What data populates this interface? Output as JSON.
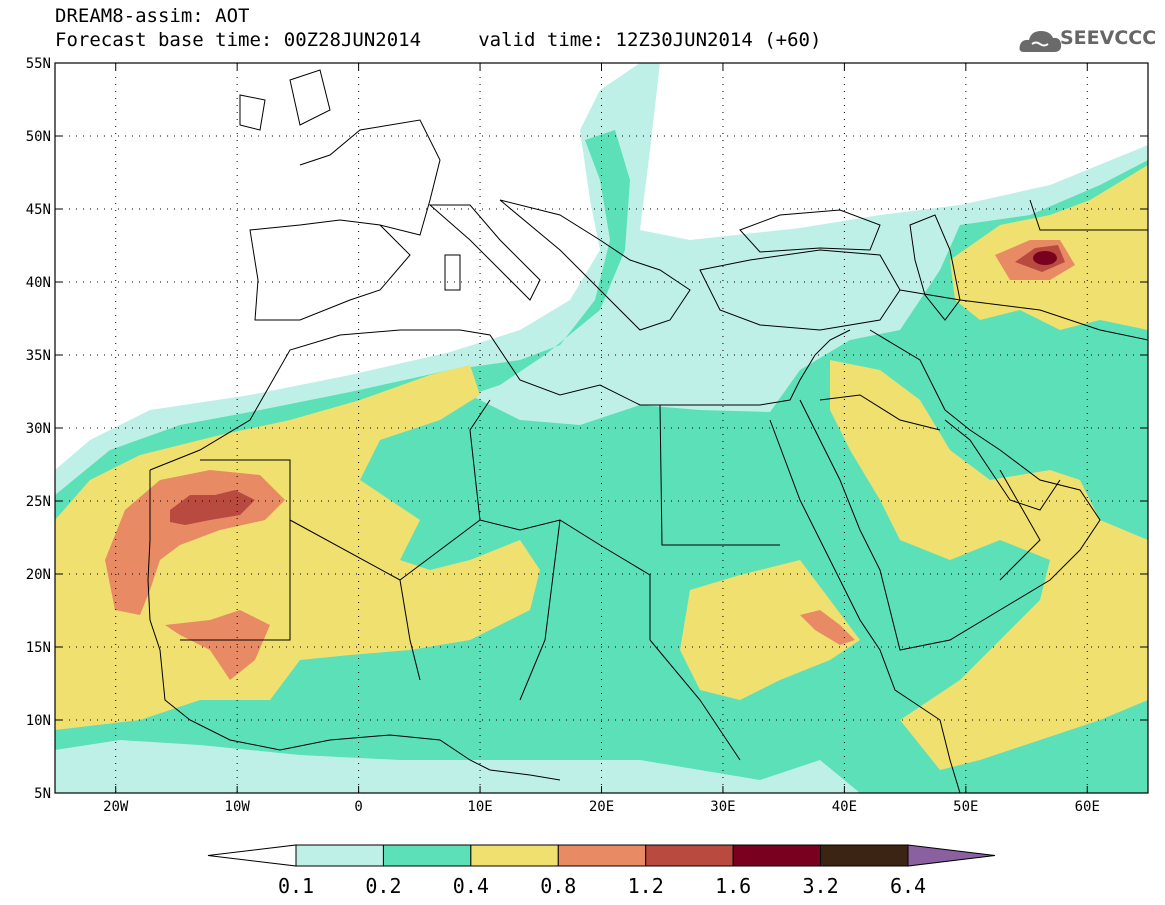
{
  "title_line1": "DREAM8-assim: AOT",
  "title_line2": "Forecast base time: 00Z28JUN2014     valid time: 12Z30JUN2014 (+60)",
  "logo_text": "SEEVCCC",
  "map": {
    "lon_range": [
      -25,
      65
    ],
    "lat_range": [
      5,
      55
    ],
    "lon_ticks": [
      {
        "lon": -20,
        "label": "20W"
      },
      {
        "lon": -10,
        "label": "10W"
      },
      {
        "lon": 0,
        "label": "0"
      },
      {
        "lon": 10,
        "label": "10E"
      },
      {
        "lon": 20,
        "label": "20E"
      },
      {
        "lon": 30,
        "label": "30E"
      },
      {
        "lon": 40,
        "label": "40E"
      },
      {
        "lon": 50,
        "label": "50E"
      },
      {
        "lon": 60,
        "label": "60E"
      }
    ],
    "lat_ticks": [
      {
        "lat": 55,
        "label": "55N"
      },
      {
        "lat": 50,
        "label": "50N"
      },
      {
        "lat": 45,
        "label": "45N"
      },
      {
        "lat": 40,
        "label": "40N"
      },
      {
        "lat": 35,
        "label": "35N"
      },
      {
        "lat": 30,
        "label": "30N"
      },
      {
        "lat": 25,
        "label": "25N"
      },
      {
        "lat": 20,
        "label": "20N"
      },
      {
        "lat": 15,
        "label": "15N"
      },
      {
        "lat": 10,
        "label": "10N"
      },
      {
        "lat": 5,
        "label": "5N"
      }
    ]
  },
  "colorbar": {
    "levels": [
      "0.1",
      "0.2",
      "0.4",
      "0.8",
      "1.2",
      "1.6",
      "3.2",
      "6.4"
    ],
    "colors": [
      "#ffffff",
      "#bff0e8",
      "#5ce0b8",
      "#f0e070",
      "#e88a64",
      "#b84a40",
      "#7a0020",
      "#3c2414",
      "#8a60a0"
    ]
  }
}
